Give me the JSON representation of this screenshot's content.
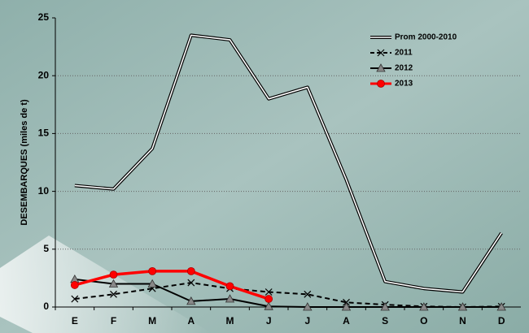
{
  "chart_data": {
    "type": "line",
    "y_axis_label": "DESEMBARQUES    (miles de t)",
    "categories": [
      "E",
      "F",
      "M",
      "A",
      "M",
      "J",
      "J",
      "A",
      "S",
      "O",
      "N",
      "D"
    ],
    "ylim": [
      0,
      25
    ],
    "yticks": [
      0,
      5,
      10,
      15,
      20,
      25
    ],
    "grid": true,
    "legend": "upper right",
    "series": [
      {
        "name": "Prom 2000-2010",
        "color": "#000000",
        "double": true,
        "dashed": false,
        "marker": "none",
        "values": [
          10.5,
          10.2,
          13.7,
          23.5,
          23.1,
          18.0,
          19.0,
          11.0,
          2.2,
          1.6,
          1.3,
          6.4
        ]
      },
      {
        "name": "2011",
        "color": "#000000",
        "double": false,
        "dashed": true,
        "marker": "x",
        "values": [
          0.7,
          1.1,
          1.6,
          2.1,
          1.6,
          1.3,
          1.1,
          0.4,
          0.2,
          0.05,
          0.0,
          0.05
        ]
      },
      {
        "name": "2012",
        "color": "#000000",
        "double": false,
        "dashed": false,
        "marker": "triangle",
        "values": [
          2.4,
          2.0,
          2.0,
          0.5,
          0.7,
          0.05,
          0.0,
          0.0,
          0.0,
          0.0,
          0.0,
          0.0
        ]
      },
      {
        "name": "2013",
        "color": "#ff0000",
        "double": false,
        "dashed": false,
        "marker": "circle",
        "values": [
          1.9,
          2.8,
          3.1,
          3.1,
          1.8,
          0.7,
          null,
          null,
          null,
          null,
          null,
          null
        ]
      }
    ]
  }
}
